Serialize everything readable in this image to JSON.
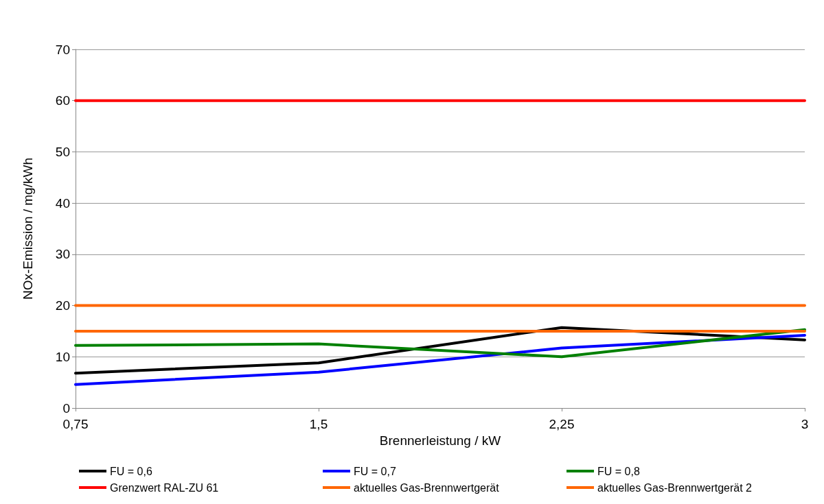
{
  "chart_data": {
    "type": "line",
    "xlabel": "Brennerleistung / kW",
    "ylabel": "NOx-Emission / mg/kWh",
    "categories": [
      "0,75",
      "1,5",
      "2,25",
      "3"
    ],
    "ylim": [
      0,
      70
    ],
    "yticks": [
      0,
      10,
      20,
      30,
      40,
      50,
      60,
      70
    ],
    "grid": "y",
    "legend": "bottom",
    "marker": "none",
    "line_style": "solid",
    "series": [
      {
        "name": "FU = 0,6",
        "color": "#000000",
        "values": [
          6.8,
          8.8,
          15.7,
          13.3
        ]
      },
      {
        "name": "FU = 0,7",
        "color": "#0000ff",
        "values": [
          4.6,
          7.0,
          11.7,
          14.2
        ]
      },
      {
        "name": "FU = 0,8",
        "color": "#008000",
        "values": [
          12.2,
          12.5,
          10.0,
          15.3
        ]
      },
      {
        "name": "Grenzwert RAL-ZU 61",
        "color": "#ff0000",
        "values": [
          60,
          60,
          60,
          60
        ]
      },
      {
        "name": "aktuelles Gas-Brennwertgerät",
        "color": "#ff6600",
        "values": [
          20,
          20,
          20,
          20
        ]
      },
      {
        "name": "aktuelles Gas-Brennwertgerät 2",
        "color": "#ff6600",
        "values": [
          15,
          15,
          15,
          15
        ]
      }
    ]
  }
}
